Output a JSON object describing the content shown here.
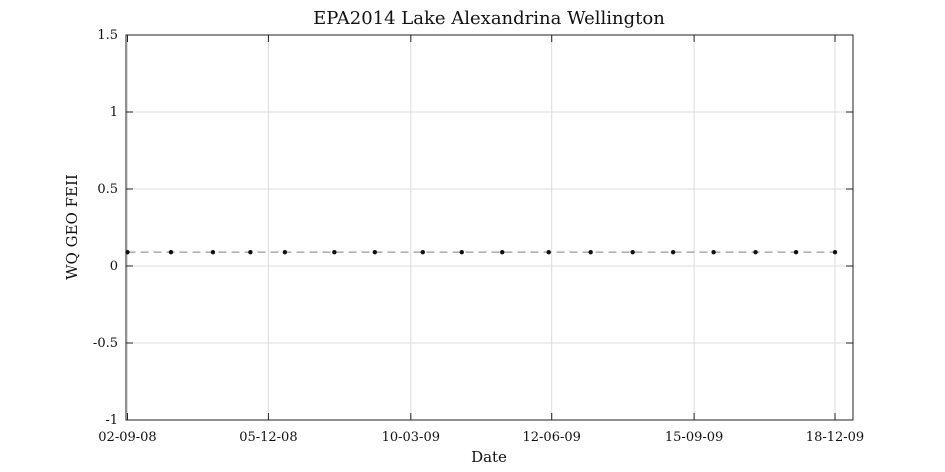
{
  "chart_data": {
    "type": "line",
    "title": "EPA2014 Lake Alexandrina Wellington",
    "xlabel": "Date",
    "ylabel": "WQ GEO FEII",
    "x_type": "date",
    "xlim": [
      "2008-09-01",
      "2009-12-30"
    ],
    "ylim": [
      -1,
      1.5
    ],
    "x_ticks": [
      {
        "label": "02-09-08",
        "date": "2008-09-02"
      },
      {
        "label": "05-12-08",
        "date": "2008-12-05"
      },
      {
        "label": "10-03-09",
        "date": "2009-03-10"
      },
      {
        "label": "12-06-09",
        "date": "2009-06-12"
      },
      {
        "label": "15-09-09",
        "date": "2009-09-15"
      },
      {
        "label": "18-12-09",
        "date": "2009-12-18"
      }
    ],
    "y_ticks": [
      -1,
      -0.5,
      0,
      0.5,
      1,
      1.5
    ],
    "y_tick_labels": [
      "-1",
      "-0.5",
      "0",
      "0.5",
      "1",
      "1.5"
    ],
    "grid": true,
    "series": [
      {
        "x": [
          "2008-09-02",
          "2008-10-01",
          "2008-10-29",
          "2008-11-23",
          "2008-12-16",
          "2009-01-18",
          "2009-02-14",
          "2009-03-18",
          "2009-04-13",
          "2009-05-10",
          "2009-06-10",
          "2009-07-08",
          "2009-08-05",
          "2009-09-01",
          "2009-09-28",
          "2009-10-26",
          "2009-11-22",
          "2009-12-18"
        ],
        "y": [
          0.09,
          0.09,
          0.09,
          0.09,
          0.09,
          0.09,
          0.09,
          0.09,
          0.09,
          0.09,
          0.09,
          0.09,
          0.09,
          0.09,
          0.09,
          0.09,
          0.09,
          0.09
        ],
        "line_color": "#999999",
        "marker_color": "#111111"
      }
    ]
  }
}
